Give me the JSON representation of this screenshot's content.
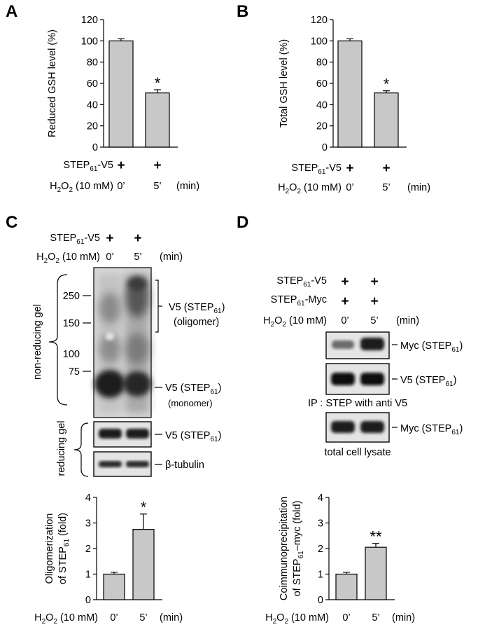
{
  "panel_letters": {
    "a": "A",
    "b": "B",
    "c": "C",
    "d": "D"
  },
  "symbols": {
    "plus": "+"
  },
  "labels": {
    "step61_v5": {
      "prefix": "STEP",
      "sub": "61",
      "suffix": "-V5"
    },
    "step61_myc": {
      "prefix": "STEP",
      "sub": "61",
      "suffix": "-Myc"
    },
    "h2o2": {
      "p1": "H",
      "s1": "2",
      "p2": "O",
      "s2": "2",
      "rest": " (10 mM)"
    },
    "time_0": "0’",
    "time_5": "5’",
    "min_unit": "(min)"
  },
  "panel_c": {
    "blot_labels": {
      "non_reducing_gel": "non-reducing gel",
      "reducing_gel": "reducing gel",
      "v5_oligomer_line1": {
        "prefix": "V5 (STEP",
        "sub": "61",
        "suffix": ")"
      },
      "v5_oligomer_line2": "(oligomer)",
      "v5_monomer_line1": {
        "prefix": "V5 (STEP",
        "sub": "61",
        "suffix": ")"
      },
      "v5_monomer_line2": "(monomer)",
      "v5_reducing": {
        "prefix": "V5 (STEP",
        "sub": "61",
        "suffix": ")"
      },
      "beta_tubulin": "β-tubulin"
    },
    "mw_markers": [
      "250",
      "150",
      "100",
      "75"
    ]
  },
  "panel_d": {
    "blot_labels": {
      "myc_ip": {
        "prefix": "Myc (STEP",
        "sub": "61",
        "suffix": ")"
      },
      "v5_ip": {
        "prefix": "V5 (STEP",
        "sub": "61",
        "suffix": ")"
      },
      "ip_caption": "IP : STEP with anti V5",
      "myc_lysate": {
        "prefix": "Myc (STEP",
        "sub": "61",
        "suffix": ")"
      },
      "lysate_caption": "total cell lysate"
    }
  },
  "chart_data": [
    {
      "id": "A",
      "type": "bar",
      "categories": [
        "0’",
        "5’"
      ],
      "values": [
        100,
        51
      ],
      "errors": [
        2,
        3
      ],
      "significance": [
        "",
        "*"
      ],
      "ylabel": "Reduced GSH level (%)",
      "ylim": [
        0,
        120
      ],
      "yticks": [
        "0",
        "20",
        "40",
        "60",
        "80",
        "100",
        "120"
      ]
    },
    {
      "id": "B",
      "type": "bar",
      "categories": [
        "0’",
        "5’"
      ],
      "values": [
        100,
        51
      ],
      "errors": [
        2,
        2
      ],
      "significance": [
        "",
        "*"
      ],
      "ylabel": "Total GSH level (%)",
      "ylim": [
        0,
        120
      ],
      "yticks": [
        "0",
        "20",
        "40",
        "60",
        "80",
        "100",
        "120"
      ]
    },
    {
      "id": "C",
      "type": "bar",
      "categories": [
        "0’",
        "5’"
      ],
      "values": [
        1.0,
        2.75
      ],
      "errors": [
        0.07,
        0.6
      ],
      "significance": [
        "",
        "*"
      ],
      "ylabel_line1": "Oligomerization",
      "ylabel_line2": {
        "prefix": "of STEP",
        "sub": "61",
        "suffix": " (fold)"
      },
      "ylim": [
        0,
        4
      ],
      "yticks": [
        "0",
        "1",
        "2",
        "3",
        "4"
      ]
    },
    {
      "id": "D",
      "type": "bar",
      "categories": [
        "0’",
        "5’"
      ],
      "values": [
        1.0,
        2.05
      ],
      "errors": [
        0.07,
        0.15
      ],
      "significance": [
        "",
        "**"
      ],
      "ylabel_line1": "Coimmunoprecipitation",
      "ylabel_line2": {
        "prefix": "of STEP",
        "sub": "61",
        "suffix": "–myc (fold)"
      },
      "ylim": [
        0,
        4
      ],
      "yticks": [
        "0",
        "1",
        "2",
        "3",
        "4"
      ]
    }
  ]
}
